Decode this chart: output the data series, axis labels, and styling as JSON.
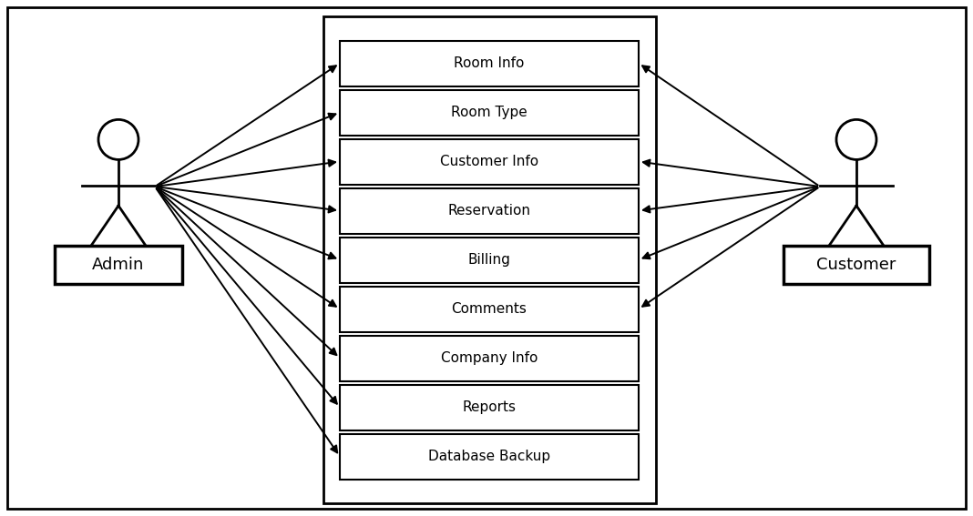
{
  "background_color": "#ffffff",
  "use_cases": [
    "Room Info",
    "Room Type",
    "Customer Info",
    "Reservation",
    "Billing",
    "Comments",
    "Company Info",
    "Reports",
    "Database Backup"
  ],
  "admin_connects": [
    0,
    1,
    2,
    3,
    4,
    5,
    6,
    7,
    8
  ],
  "customer_connects": [
    0,
    2,
    3,
    4,
    5
  ],
  "admin_label": "Admin",
  "customer_label": "Customer",
  "figsize": [
    10.68,
    5.67
  ],
  "dpi": 100
}
